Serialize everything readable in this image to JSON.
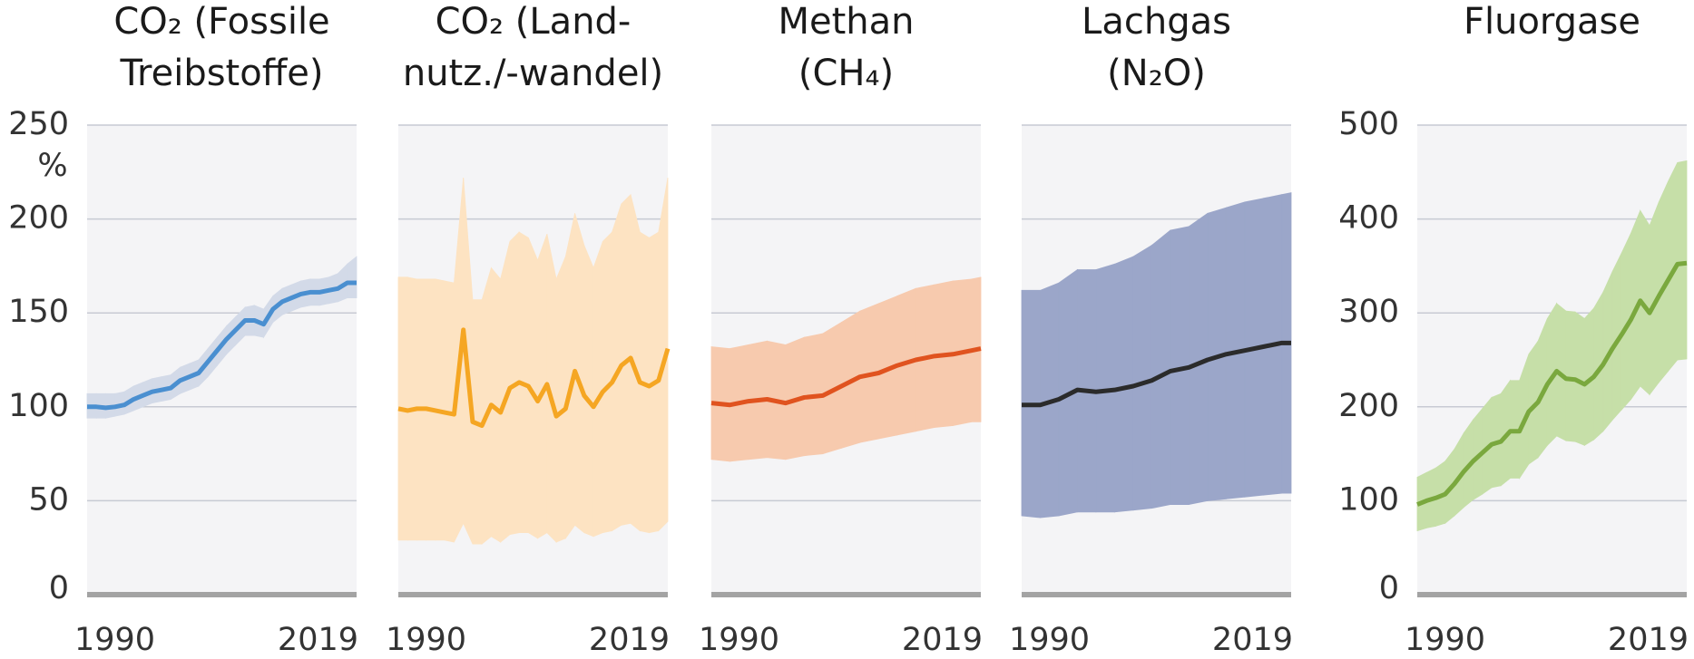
{
  "chart_data": [
    {
      "type": "line",
      "title": [
        "CO₂ (Fossile",
        "Treibstoffe)"
      ],
      "y_unit": "%",
      "y_axis_labels": true,
      "x": [
        1990,
        1991,
        1992,
        1993,
        1994,
        1995,
        1996,
        1997,
        1998,
        1999,
        2000,
        2001,
        2002,
        2003,
        2004,
        2005,
        2006,
        2007,
        2008,
        2009,
        2010,
        2011,
        2012,
        2013,
        2014,
        2015,
        2016,
        2017,
        2018,
        2019
      ],
      "series": [
        {
          "color": "#4a8fd0",
          "band_color": "#d3dae8",
          "values": [
            100,
            100,
            99.5,
            100,
            101,
            104,
            106,
            108,
            109,
            110,
            114,
            116,
            118,
            124,
            130,
            136,
            141,
            146,
            146,
            144,
            152,
            156,
            158,
            160,
            161,
            161,
            162,
            163,
            166,
            166
          ],
          "lower": [
            94,
            94,
            94,
            95,
            96,
            98,
            100,
            102,
            103,
            104,
            107,
            109,
            111,
            116,
            122,
            128,
            133,
            138,
            138,
            137,
            145,
            149,
            151,
            153,
            154,
            154,
            155,
            156,
            158,
            158
          ],
          "upper": [
            107,
            107,
            107,
            107,
            108,
            111,
            113,
            115,
            116,
            117,
            121,
            123,
            125,
            131,
            137,
            143,
            148,
            153,
            154,
            152,
            159,
            163,
            165,
            167,
            168,
            168,
            169,
            171,
            176,
            180
          ]
        }
      ],
      "xlim": [
        1990,
        2019
      ],
      "xticks": [
        1990,
        2019
      ],
      "ylim": [
        0,
        250
      ],
      "yticks": [
        0,
        50,
        100,
        150,
        200,
        250
      ],
      "grid": true
    },
    {
      "type": "line",
      "title": [
        "CO₂ (Land-",
        "nutz./-wandel)"
      ],
      "y_axis_labels": false,
      "x": [
        1990,
        1991,
        1992,
        1993,
        1994,
        1995,
        1996,
        1997,
        1998,
        1999,
        2000,
        2001,
        2002,
        2003,
        2004,
        2005,
        2006,
        2007,
        2008,
        2009,
        2010,
        2011,
        2012,
        2013,
        2014,
        2015,
        2016,
        2017,
        2018,
        2019
      ],
      "series": [
        {
          "color": "#f5a623",
          "band_color": "#fde3c2",
          "values": [
            99,
            98,
            99,
            99,
            98,
            97,
            96,
            141,
            92,
            90,
            101,
            97,
            110,
            113,
            111,
            103,
            112,
            95,
            99,
            119,
            106,
            100,
            108,
            113,
            122,
            126,
            113,
            111,
            114,
            131
          ],
          "lower": [
            29,
            29,
            29,
            29,
            29,
            29,
            28,
            38,
            27,
            27,
            31,
            28,
            32,
            33,
            33,
            30,
            33,
            28,
            30,
            37,
            33,
            31,
            33,
            34,
            37,
            38,
            34,
            33,
            34,
            39
          ],
          "upper": [
            169,
            169,
            168,
            168,
            168,
            167,
            166,
            222,
            157,
            157,
            174,
            168,
            188,
            193,
            190,
            178,
            192,
            168,
            180,
            203,
            186,
            174,
            188,
            193,
            208,
            213,
            193,
            190,
            193,
            222
          ]
        }
      ],
      "xlim": [
        1990,
        2019
      ],
      "xticks": [
        1990,
        2019
      ],
      "ylim": [
        0,
        250
      ],
      "yticks": [
        0,
        50,
        100,
        150,
        200,
        250
      ],
      "grid": true
    },
    {
      "type": "line",
      "title": [
        "Methan",
        "(CH₄)"
      ],
      "y_axis_labels": false,
      "x": [
        1990,
        1992,
        1994,
        1996,
        1998,
        2000,
        2002,
        2004,
        2006,
        2008,
        2010,
        2012,
        2014,
        2016,
        2018,
        2019
      ],
      "series": [
        {
          "color": "#e0531f",
          "band_color": "#f7caae",
          "values": [
            102,
            101,
            103,
            104,
            102,
            105,
            106,
            111,
            116,
            118,
            122,
            125,
            127,
            128,
            130,
            131
          ],
          "lower": [
            72,
            71,
            72,
            73,
            72,
            74,
            75,
            78,
            81,
            83,
            85,
            87,
            89,
            90,
            92,
            92
          ],
          "upper": [
            132,
            131,
            133,
            135,
            133,
            137,
            139,
            145,
            151,
            155,
            159,
            163,
            165,
            167,
            168,
            169
          ]
        }
      ],
      "xlim": [
        1990,
        2019
      ],
      "xticks": [
        1990,
        2019
      ],
      "ylim": [
        0,
        250
      ],
      "yticks": [
        0,
        50,
        100,
        150,
        200,
        250
      ],
      "grid": true
    },
    {
      "type": "line",
      "title": [
        "Lachgas",
        "(N₂O)"
      ],
      "y_axis_labels": false,
      "x": [
        1990,
        1992,
        1994,
        1996,
        1998,
        2000,
        2002,
        2004,
        2006,
        2008,
        2010,
        2012,
        2014,
        2016,
        2018,
        2019
      ],
      "series": [
        {
          "color": "#2b2b2b",
          "band_color": "#9ba6c9",
          "values": [
            101,
            101,
            104,
            109,
            108,
            109,
            111,
            114,
            119,
            121,
            125,
            128,
            130,
            132,
            134,
            134
          ],
          "lower": [
            42,
            41,
            42,
            44,
            44,
            44,
            45,
            46,
            48,
            48,
            50,
            51,
            52,
            53,
            54,
            54
          ],
          "upper": [
            162,
            162,
            166,
            173,
            173,
            176,
            180,
            186,
            194,
            196,
            203,
            206,
            209,
            211,
            213,
            214
          ]
        }
      ],
      "xlim": [
        1990,
        2019
      ],
      "xticks": [
        1990,
        2019
      ],
      "ylim": [
        0,
        250
      ],
      "yticks": [
        0,
        50,
        100,
        150,
        200,
        250
      ],
      "grid": true
    },
    {
      "type": "line",
      "title": [
        "Fluorgase"
      ],
      "y_axis_labels": true,
      "x": [
        1990,
        1991,
        1992,
        1993,
        1994,
        1995,
        1996,
        1997,
        1998,
        1999,
        2000,
        2001,
        2002,
        2003,
        2004,
        2005,
        2006,
        2007,
        2008,
        2009,
        2010,
        2011,
        2012,
        2013,
        2014,
        2015,
        2016,
        2017,
        2018,
        2019
      ],
      "series": [
        {
          "color": "#7aa83e",
          "band_color": "#c6dfa8",
          "values": [
            96,
            100,
            103,
            107,
            118,
            131,
            142,
            151,
            160,
            163,
            174,
            174,
            195,
            205,
            224,
            238,
            230,
            229,
            224,
            232,
            245,
            262,
            277,
            293,
            313,
            300,
            318,
            335,
            352,
            353
          ],
          "lower": [
            68,
            71,
            73,
            76,
            84,
            93,
            101,
            107,
            114,
            116,
            124,
            124,
            139,
            146,
            159,
            169,
            164,
            163,
            159,
            165,
            174,
            186,
            197,
            208,
            222,
            213,
            226,
            238,
            250,
            251
          ],
          "upper": [
            125,
            130,
            135,
            142,
            155,
            172,
            186,
            198,
            210,
            214,
            228,
            228,
            256,
            270,
            294,
            310,
            302,
            301,
            294,
            305,
            322,
            344,
            364,
            385,
            409,
            393,
            418,
            440,
            460,
            462
          ]
        }
      ],
      "xlim": [
        1990,
        2019
      ],
      "xticks": [
        1990,
        2019
      ],
      "ylim": [
        0,
        500
      ],
      "yticks": [
        0,
        100,
        200,
        300,
        400,
        500
      ],
      "grid": true
    }
  ]
}
